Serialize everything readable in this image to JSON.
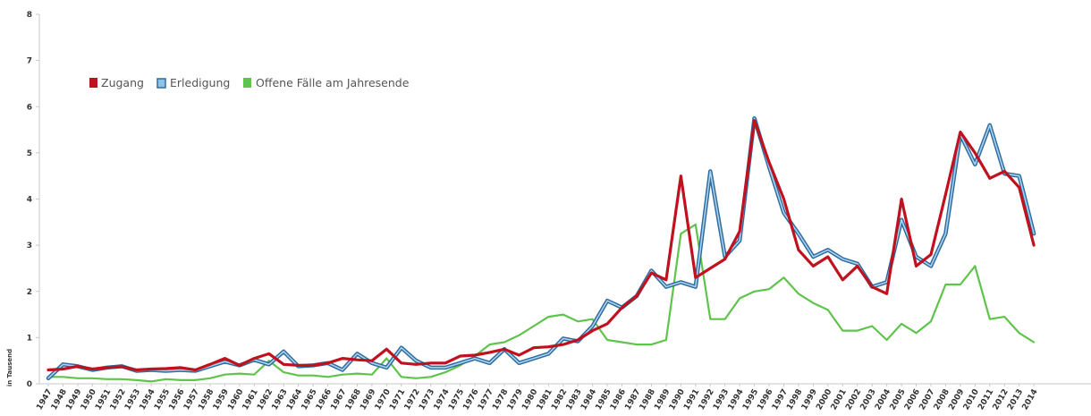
{
  "chart_data": {
    "type": "line",
    "ylabel": "in Tausend",
    "ylim": [
      0,
      8
    ],
    "yticks": [
      "0",
      "1",
      "2",
      "3",
      "4",
      "5",
      "6",
      "7",
      "8"
    ],
    "legend_position": "top-left",
    "x": [
      "1947",
      "1948",
      "1949",
      "1950",
      "1951",
      "1952",
      "1953",
      "1954",
      "1955",
      "1956",
      "1957",
      "1958",
      "1959",
      "1960",
      "1961",
      "1962",
      "1963",
      "1964",
      "1965",
      "1966",
      "1967",
      "1968",
      "1969",
      "1970",
      "1971",
      "1972",
      "1973",
      "1974",
      "1975",
      "1976",
      "1977",
      "1978",
      "1979",
      "1980",
      "1981",
      "1982",
      "1983",
      "1984",
      "1985",
      "1986",
      "1987",
      "1988",
      "1989",
      "1990",
      "1991",
      "1992",
      "1993",
      "1994",
      "1995",
      "1996",
      "1997",
      "1998",
      "1999",
      "2000",
      "2001",
      "2002",
      "2003",
      "2004",
      "2005",
      "2006",
      "2007",
      "2008",
      "2009",
      "2010",
      "2011",
      "2012",
      "2013",
      "2014"
    ],
    "series": [
      {
        "name": "Zugang",
        "color": "#c0111e",
        "values": [
          0.3,
          0.32,
          0.38,
          0.32,
          0.35,
          0.37,
          0.3,
          0.32,
          0.33,
          0.35,
          0.3,
          0.42,
          0.55,
          0.4,
          0.55,
          0.65,
          0.42,
          0.4,
          0.4,
          0.45,
          0.55,
          0.52,
          0.5,
          0.75,
          0.45,
          0.42,
          0.45,
          0.45,
          0.6,
          0.62,
          0.68,
          0.75,
          0.62,
          0.78,
          0.8,
          0.85,
          0.95,
          1.15,
          1.3,
          1.65,
          1.9,
          2.4,
          2.25,
          4.5,
          2.3,
          2.5,
          2.7,
          3.3,
          5.7,
          4.8,
          4.0,
          2.9,
          2.55,
          2.75,
          2.25,
          2.55,
          2.1,
          1.95,
          4.0,
          2.55,
          2.8,
          4.1,
          5.45,
          5.0,
          4.45,
          4.6,
          4.25,
          3.0
        ]
      },
      {
        "name": "Erledigung",
        "color": "#2e6b9e",
        "values": [
          0.12,
          0.42,
          0.38,
          0.3,
          0.35,
          0.38,
          0.28,
          0.3,
          0.28,
          0.3,
          0.28,
          0.38,
          0.48,
          0.4,
          0.52,
          0.42,
          0.7,
          0.38,
          0.4,
          0.45,
          0.3,
          0.65,
          0.45,
          0.35,
          0.78,
          0.5,
          0.35,
          0.35,
          0.45,
          0.55,
          0.45,
          0.75,
          0.45,
          0.55,
          0.65,
          0.98,
          0.92,
          1.25,
          1.8,
          1.65,
          1.9,
          2.45,
          2.1,
          2.2,
          2.1,
          4.6,
          2.75,
          3.1,
          5.75,
          4.7,
          3.7,
          3.25,
          2.75,
          2.9,
          2.7,
          2.6,
          2.1,
          2.2,
          3.55,
          2.75,
          2.55,
          3.25,
          5.4,
          4.75,
          5.6,
          4.55,
          4.5,
          3.25
        ]
      },
      {
        "name": "Offene Fälle am Jahresende",
        "color": "#5fc44b",
        "values": [
          0.15,
          0.15,
          0.12,
          0.12,
          0.1,
          0.1,
          0.08,
          0.05,
          0.1,
          0.08,
          0.08,
          0.12,
          0.2,
          0.22,
          0.2,
          0.5,
          0.25,
          0.18,
          0.18,
          0.15,
          0.2,
          0.22,
          0.2,
          0.55,
          0.15,
          0.12,
          0.15,
          0.25,
          0.4,
          0.6,
          0.85,
          0.9,
          1.05,
          1.25,
          1.45,
          1.5,
          1.35,
          1.4,
          0.95,
          0.9,
          0.85,
          0.85,
          0.95,
          3.25,
          3.45,
          1.4,
          1.4,
          1.85,
          2.0,
          2.05,
          2.3,
          1.95,
          1.75,
          1.6,
          1.15,
          1.15,
          1.25,
          0.95,
          1.3,
          1.1,
          1.35,
          2.15,
          2.15,
          2.55,
          1.4,
          1.45,
          1.1,
          0.9
        ]
      }
    ]
  }
}
